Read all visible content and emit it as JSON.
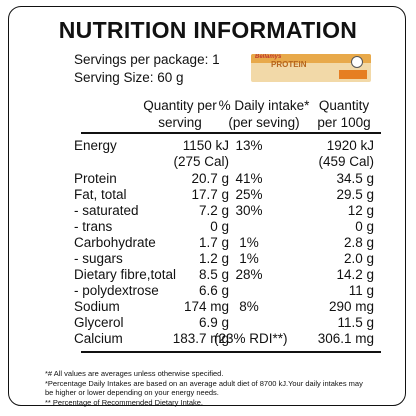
{
  "title": "NUTRITION INFORMATION",
  "servings_per_package": "Servings per package: 1",
  "serving_size": "Serving Size: 60 g",
  "product_image": {
    "brand": "Bellamys",
    "name": "PROTEIN",
    "colors": {
      "wrapper": "#f2d9a8",
      "band": "#e8a94a",
      "accent": "#e67e22"
    }
  },
  "headers": {
    "per_serving": [
      "Quantity per",
      "serving"
    ],
    "daily_intake": [
      "% Daily  intake*",
      "(per seving)"
    ],
    "per_100g": [
      "Quantity",
      "per 100g"
    ]
  },
  "rows": [
    {
      "label": "Energy",
      "serving": "1150 kJ",
      "di": "13%",
      "per100": "1920 kJ"
    },
    {
      "label": "",
      "serving": "(275 Cal)",
      "di": "",
      "per100": "(459 Cal)"
    },
    {
      "label": "Protein",
      "serving": "20.7 g",
      "di": "41%",
      "per100": "34.5 g"
    },
    {
      "label": "Fat, total",
      "serving": "17.7 g",
      "di": "25%",
      "per100": "29.5 g"
    },
    {
      "label": " - saturated",
      "serving": "7.2 g",
      "di": "30%",
      "per100": "12 g"
    },
    {
      "label": " - trans",
      "serving": "0 g",
      "di": "",
      "per100": "0 g"
    },
    {
      "label": "Carbohydrate",
      "serving": "1.7 g",
      "di": "1%",
      "per100": "2.8 g"
    },
    {
      "label": " - sugars",
      "serving": "1.2 g",
      "di": "1%",
      "per100": "2.0 g"
    },
    {
      "label": "Dietary fibre,total",
      "serving": "8.5 g",
      "di": "28%",
      "per100": "14.2 g"
    },
    {
      "label": " - polydextrose",
      "serving": "6.6 g",
      "di": "",
      "per100": "11 g"
    },
    {
      "label": "Sodium",
      "serving": "174 mg",
      "di": "8%",
      "per100": "290 mg"
    },
    {
      "label": "Glycerol",
      "serving": "6.9 g",
      "di": "",
      "per100": "11.5 g"
    },
    {
      "label": "Calcium",
      "serving": "183.7 mg",
      "di": "(23% RDI**)",
      "per100": "306.1 mg"
    }
  ],
  "footnotes": [
    "*# All values are averages unless otherwise specified.",
    "*Percentage Daily Intakes are based on an average adult diet of 8700 kJ.Your daily intakes may",
    "be higher or lower depending on your energy needs.",
    "** Percentage of Recommended Dietary Intake."
  ]
}
